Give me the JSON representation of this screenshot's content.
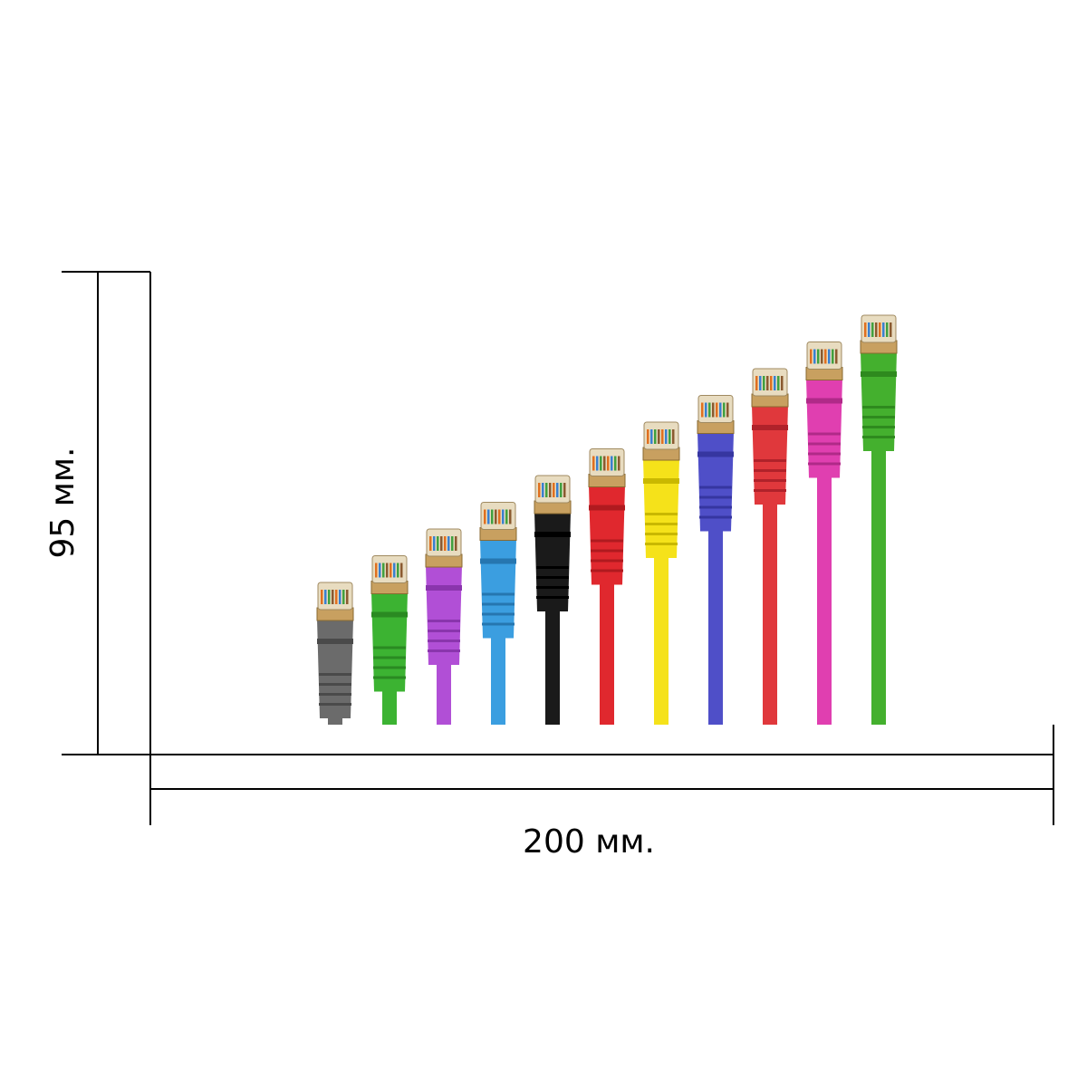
{
  "dimensions": {
    "height_label": "95 мм.",
    "width_label": "200 мм."
  },
  "cables": [
    {
      "name": "gray-cable",
      "color": "#6b6b6b",
      "dark": "#4a4a4a"
    },
    {
      "name": "green-cable",
      "color": "#3cb332",
      "dark": "#2a8a22"
    },
    {
      "name": "purple-cable",
      "color": "#b14fd6",
      "dark": "#8a35ad"
    },
    {
      "name": "blue-cable",
      "color": "#3b9ee0",
      "dark": "#2676b0"
    },
    {
      "name": "black-cable",
      "color": "#1a1a1a",
      "dark": "#000000"
    },
    {
      "name": "red-cable",
      "color": "#e0282e",
      "dark": "#b01a1f"
    },
    {
      "name": "yellow-cable",
      "color": "#f5e21a",
      "dark": "#c9b800"
    },
    {
      "name": "indigo-cable",
      "color": "#4f4fc8",
      "dark": "#3636a0"
    },
    {
      "name": "red-cable-2",
      "color": "#e0383c",
      "dark": "#b0222a"
    },
    {
      "name": "magenta-cable",
      "color": "#e03fb0",
      "dark": "#b02a88"
    },
    {
      "name": "green-cable-2",
      "color": "#44b02e",
      "dark": "#2e8a1e"
    }
  ]
}
